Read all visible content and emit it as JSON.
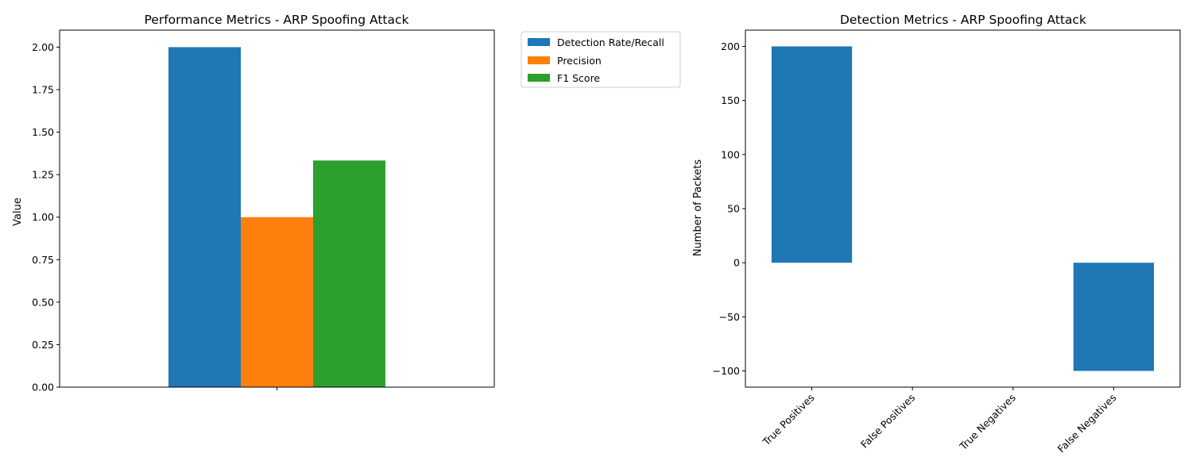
{
  "chart_data": [
    {
      "type": "bar",
      "title": "Performance Metrics - ARP Spoofing Attack",
      "xlabel": "",
      "ylabel": "Value",
      "ylim": [
        0,
        2.1
      ],
      "yticks": [
        "0.00",
        "0.25",
        "0.50",
        "0.75",
        "1.00",
        "1.25",
        "1.50",
        "1.75",
        "2.00"
      ],
      "categories": [
        ""
      ],
      "series": [
        {
          "name": "Detection Rate/Recall",
          "values": [
            2.0
          ],
          "color": "#1f77b4"
        },
        {
          "name": "Precision",
          "values": [
            1.0
          ],
          "color": "#ff7f0e"
        },
        {
          "name": "F1 Score",
          "values": [
            1.3333
          ],
          "color": "#2ca02c"
        }
      ],
      "legend": "outside-upper-right",
      "grid": false
    },
    {
      "type": "bar",
      "title": "Detection Metrics - ARP Spoofing Attack",
      "xlabel": "",
      "ylabel": "Number of Packets",
      "ylim": [
        -115,
        215
      ],
      "yticks": [
        "−100",
        "−50",
        "0",
        "50",
        "100",
        "150",
        "200"
      ],
      "categories": [
        "True Positives",
        "False Positives",
        "True Negatives",
        "False Negatives"
      ],
      "values": [
        200,
        0,
        0,
        -100
      ],
      "color": "#1f77b4",
      "grid": false
    }
  ]
}
